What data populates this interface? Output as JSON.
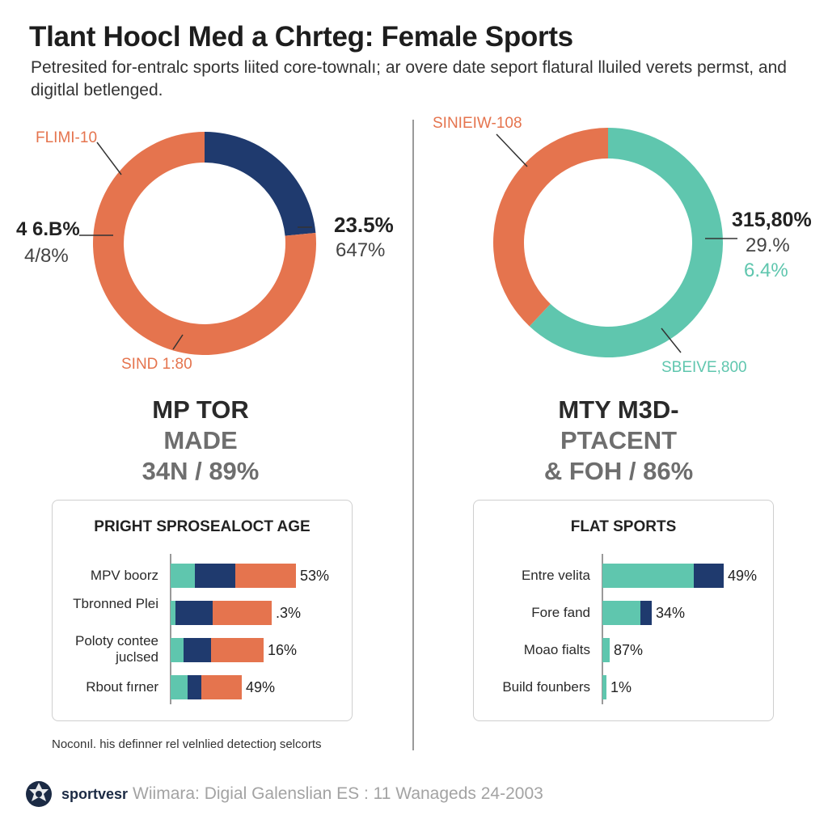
{
  "title": "Tlant Hoocl Med a Chrteg: Female Sports",
  "subtitle": "Petresited for-entralc sports liited core-townalı; ar overe date seport flatural lluiled verets permst, and digitlal betlenged.",
  "colors": {
    "orange": "#e5744e",
    "navy": "#1f3a6e",
    "teal": "#5fc6ae",
    "gray": "#8a8a8a"
  },
  "left": {
    "donut": {
      "segments": [
        {
          "name": "navy",
          "value": 23.5,
          "color": "#1f3a6e"
        },
        {
          "name": "orange",
          "value": 76.5,
          "color": "#e5744e"
        }
      ],
      "callout_top": "FLIMI-10",
      "callout_bottom": "SIND 1:80",
      "left_value": "4 6.B%",
      "left_sub": "4/8%",
      "right_value": "23.5%",
      "right_sub": "647%"
    },
    "heading": {
      "line1": "MP TOR",
      "line2": "MADE",
      "line3": "34N / 89%"
    },
    "box": {
      "title": "PRIGHT SPROSEALOCT AGE",
      "rows": [
        {
          "label": "MPV boorz",
          "value": "53%",
          "teal": 30,
          "navy": 50,
          "orange": 75
        },
        {
          "label": "Tbronned Plei",
          "value": ".3%",
          "teal": 6,
          "navy": 46,
          "orange": 73
        },
        {
          "label": "Poloty contee juclsed",
          "value": "16%",
          "teal": 16,
          "navy": 34,
          "orange": 65
        },
        {
          "label": "Rbout fırner",
          "value": "49%",
          "teal": 21,
          "navy": 17,
          "orange": 50
        }
      ]
    }
  },
  "right": {
    "donut": {
      "segments": [
        {
          "name": "teal",
          "value": 62,
          "color": "#5fc6ae"
        },
        {
          "name": "orange",
          "value": 38,
          "color": "#e5744e"
        }
      ],
      "callout_top": "SINIEIW-108",
      "callout_bottom": "SBEIVE,800",
      "right_value": "315,80%",
      "right_sub": "29.%",
      "right_sub2": "6.4%"
    },
    "heading": {
      "line1": "MTY M3D-",
      "line2": "PTACENT",
      "line3": "& FOH / 86%"
    },
    "box": {
      "title": "FLAT SPORTS",
      "rows": [
        {
          "label": "Entre velita",
          "value": "49%",
          "teal": 113,
          "navy": 37
        },
        {
          "label": "Fore fand",
          "value": "34%",
          "teal": 47,
          "navy": 14
        },
        {
          "label": "Moao fialts",
          "value": "87%",
          "teal": 9,
          "navy": 0
        },
        {
          "label": "Build founbers",
          "value": "1%",
          "teal": 5,
          "navy": 0
        }
      ]
    }
  },
  "chart_data": [
    {
      "type": "pie",
      "title": "MP TOR MADE 34N / 89%",
      "categories": [
        "navy",
        "orange"
      ],
      "values": [
        23.5,
        76.5
      ]
    },
    {
      "type": "pie",
      "title": "MTY M3D- PTACENT & FOH / 86%",
      "categories": [
        "teal",
        "orange"
      ],
      "values": [
        62,
        38
      ]
    },
    {
      "type": "bar",
      "title": "PRIGHT SPROSEALOCT AGE",
      "categories": [
        "MPV boorz",
        "Tbronned Plei",
        "Poloty contee juclsed",
        "Rbout fırner"
      ],
      "value_labels": [
        "53%",
        ".3%",
        "16%",
        "49%"
      ],
      "series": [
        {
          "name": "teal",
          "values": [
            30,
            6,
            16,
            21
          ]
        },
        {
          "name": "navy",
          "values": [
            50,
            46,
            34,
            17
          ]
        },
        {
          "name": "orange",
          "values": [
            75,
            73,
            65,
            50
          ]
        }
      ]
    },
    {
      "type": "bar",
      "title": "FLAT SPORTS",
      "categories": [
        "Entre velita",
        "Fore fand",
        "Moao fialts",
        "Build founbers"
      ],
      "value_labels": [
        "49%",
        "34%",
        "87%",
        "1%"
      ],
      "series": [
        {
          "name": "teal",
          "values": [
            113,
            47,
            9,
            5
          ]
        },
        {
          "name": "navy",
          "values": [
            37,
            14,
            0,
            0
          ]
        }
      ]
    }
  ],
  "footnote": "Noconıl. his definner rel velnlied detectioŋ selcorts",
  "footer": {
    "logo_icon": "globe-icon",
    "brand": "sportvesr",
    "source": "Wiimara: Digial Galenslian ES : 11 Wanageds 24-2003"
  }
}
